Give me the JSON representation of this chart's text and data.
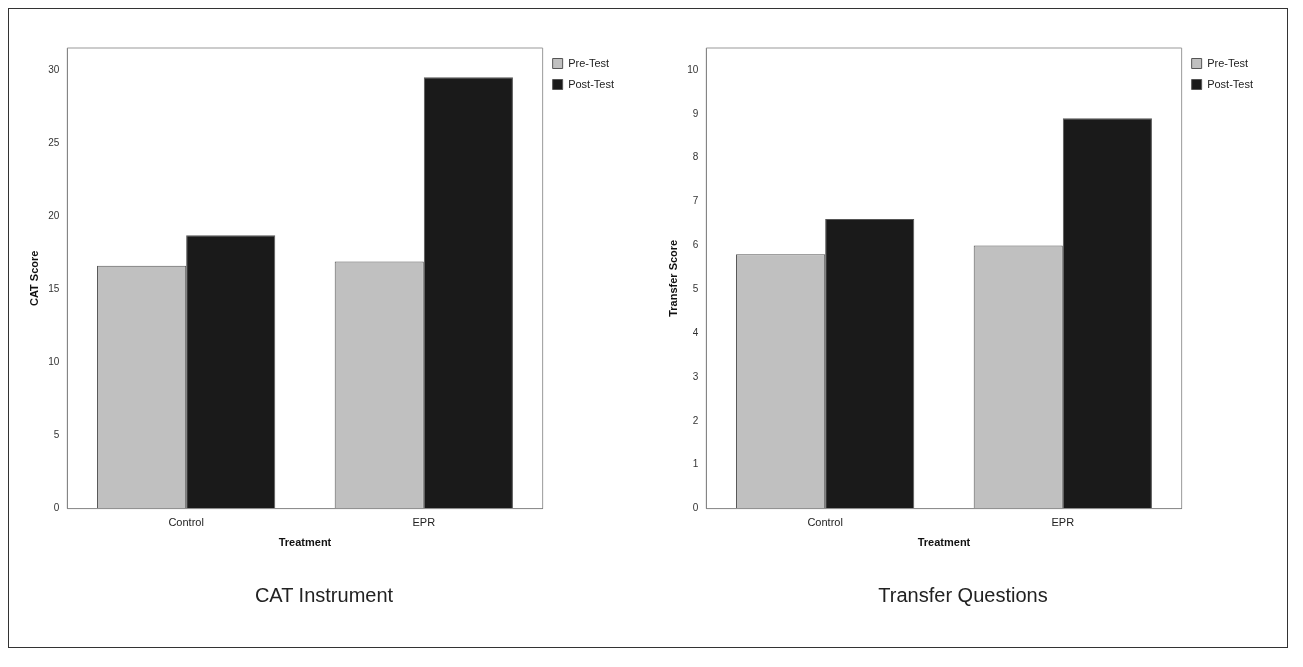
{
  "chart_data": [
    {
      "type": "bar",
      "title": "CAT Instrument",
      "xlabel": "Treatment",
      "ylabel": "CAT Score",
      "categories": [
        "Control",
        "EPR"
      ],
      "series": [
        {
          "name": "Pre-Test",
          "color": "#c0c0c0",
          "values": [
            16.6,
            16.9
          ]
        },
        {
          "name": "Post-Test",
          "color": "#1a1a1a",
          "values": [
            18.7,
            29.5
          ]
        }
      ],
      "ylim": [
        0,
        31.5
      ],
      "yticks": [
        0,
        5,
        10,
        15,
        20,
        25,
        30
      ],
      "grid": false,
      "legend": "top right"
    },
    {
      "type": "bar",
      "title": "Transfer Questions",
      "xlabel": "Treatment",
      "ylabel": "Transfer Score",
      "categories": [
        "Control",
        "EPR"
      ],
      "series": [
        {
          "name": "Pre-Test",
          "color": "#c0c0c0",
          "values": [
            5.8,
            6.0
          ]
        },
        {
          "name": "Post-Test",
          "color": "#1a1a1a",
          "values": [
            6.6,
            8.9
          ]
        }
      ],
      "ylim": [
        0,
        10.5
      ],
      "yticks": [
        0,
        1,
        2,
        3,
        4,
        5,
        6,
        7,
        8,
        9,
        10
      ],
      "grid": false,
      "legend": "top right"
    }
  ]
}
